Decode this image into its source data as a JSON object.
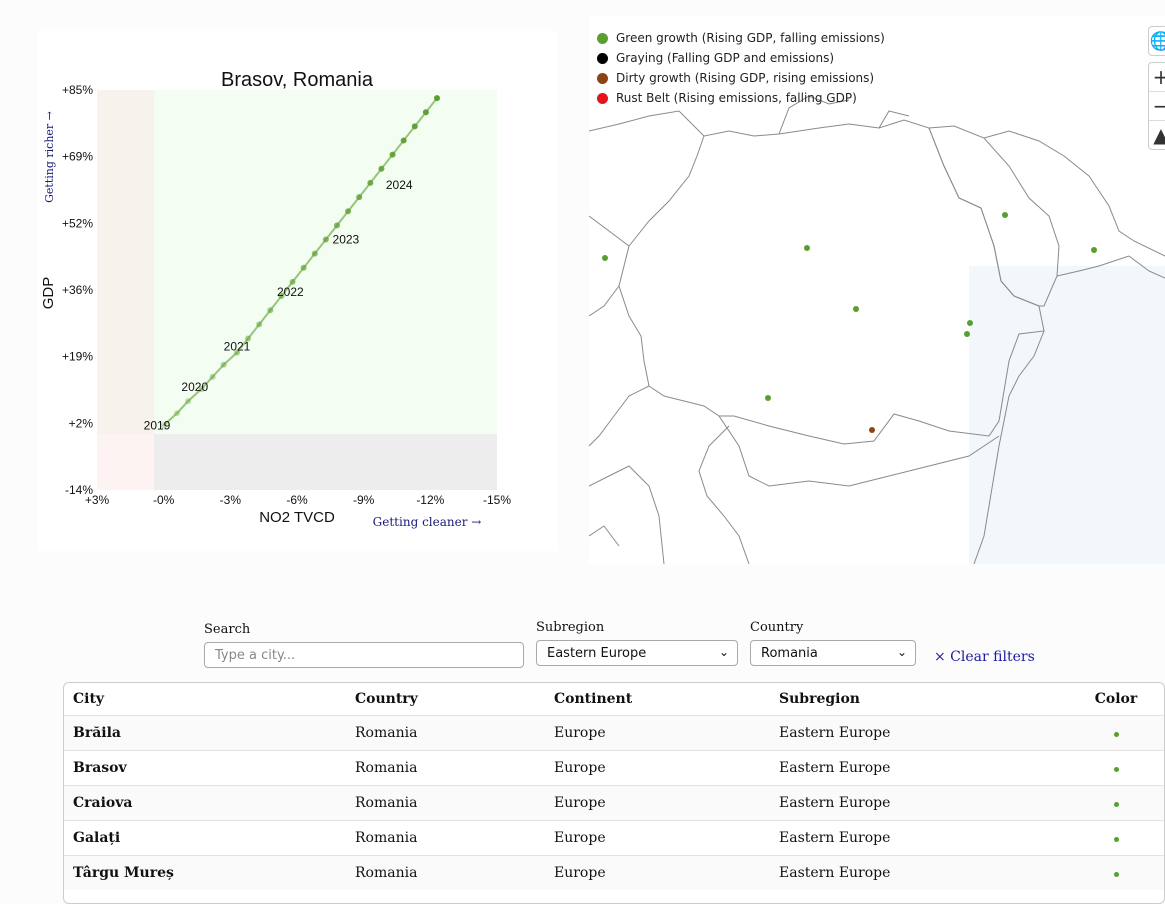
{
  "chart_data": {
    "type": "line",
    "title": "Brasov, Romania",
    "xlabel": "NO2 TVCD",
    "ylabel": "GDP",
    "x_direction_label": "Getting cleaner →",
    "y_direction_label": "Getting richer →",
    "x_ticks": [
      "+3%",
      "-0%",
      "-3%",
      "-6%",
      "-9%",
      "-12%",
      "-15%"
    ],
    "y_ticks": [
      "+85%",
      "+69%",
      "+52%",
      "+36%",
      "+19%",
      "+2%",
      "-14%"
    ],
    "xlim": [
      3,
      -15
    ],
    "ylim": [
      -14,
      85
    ],
    "grid": false,
    "series": [
      {
        "color": "#5a9e2f",
        "x": [
          0,
          -0.6,
          -1.1,
          -1.7,
          -2.2,
          -2.7,
          -3.3,
          -3.8,
          -4.3,
          -4.8,
          -5.3,
          -5.8,
          -6.3,
          -6.8,
          -7.3,
          -7.8,
          -8.3,
          -8.8,
          -9.3,
          -9.8,
          -10.3,
          -10.8,
          -11.3,
          -11.8,
          -12.3
        ],
        "y": [
          2,
          5,
          8,
          11,
          14,
          17,
          20,
          23.5,
          27,
          30.5,
          34,
          37.5,
          41,
          44.5,
          48,
          51.5,
          55,
          58.5,
          62,
          65.5,
          69,
          72.5,
          76,
          79.5,
          83
        ]
      }
    ],
    "annotations": [
      {
        "text": "2019",
        "x": 0.3,
        "y": 1
      },
      {
        "text": "2020",
        "x": -1.4,
        "y": 10.5
      },
      {
        "text": "2021",
        "x": -3.3,
        "y": 20.5
      },
      {
        "text": "2022",
        "x": -5.7,
        "y": 34
      },
      {
        "text": "2023",
        "x": -8.2,
        "y": 47
      },
      {
        "text": "2024",
        "x": -10.6,
        "y": 60.5
      }
    ]
  },
  "map": {
    "legend": [
      {
        "label": "Green growth (Rising GDP, falling emissions)",
        "color": "#5a9e2f"
      },
      {
        "label": "Graying (Falling GDP and emissions)",
        "color": "#000000"
      },
      {
        "label": "Dirty growth (Rising GDP, rising emissions)",
        "color": "#8b4513"
      },
      {
        "label": "Rust Belt (Rising emissions, falling GDP)",
        "color": "#e8141c"
      }
    ],
    "controls": {
      "globe_icon": "globe-icon",
      "zoom_in": "+",
      "zoom_out": "−",
      "compass_icon": "compass-icon"
    },
    "city_points": [
      {
        "color": "#5a9e2f"
      },
      {
        "color": "#5a9e2f"
      },
      {
        "color": "#5a9e2f"
      },
      {
        "color": "#5a9e2f"
      },
      {
        "color": "#5a9e2f"
      },
      {
        "color": "#5a9e2f"
      },
      {
        "color": "#5a9e2f"
      },
      {
        "color": "#5a9e2f"
      },
      {
        "color": "#8b4513"
      }
    ]
  },
  "filters": {
    "search_label": "Search",
    "search_placeholder": "Type a city...",
    "subregion_label": "Subregion",
    "subregion_value": "Eastern Europe",
    "country_label": "Country",
    "country_value": "Romania",
    "clear_label": "× Clear filters"
  },
  "table": {
    "headers": [
      "City",
      "Country",
      "Continent",
      "Subregion",
      "Color"
    ],
    "rows": [
      {
        "city": "Brăila",
        "country": "Romania",
        "continent": "Europe",
        "subregion": "Eastern Europe",
        "color": "#5a9e2f"
      },
      {
        "city": "Brasov",
        "country": "Romania",
        "continent": "Europe",
        "subregion": "Eastern Europe",
        "color": "#5a9e2f"
      },
      {
        "city": "Craiova",
        "country": "Romania",
        "continent": "Europe",
        "subregion": "Eastern Europe",
        "color": "#5a9e2f"
      },
      {
        "city": "Galați",
        "country": "Romania",
        "continent": "Europe",
        "subregion": "Eastern Europe",
        "color": "#5a9e2f"
      },
      {
        "city": "Târgu Mureș",
        "country": "Romania",
        "continent": "Europe",
        "subregion": "Eastern Europe",
        "color": "#5a9e2f"
      }
    ]
  }
}
